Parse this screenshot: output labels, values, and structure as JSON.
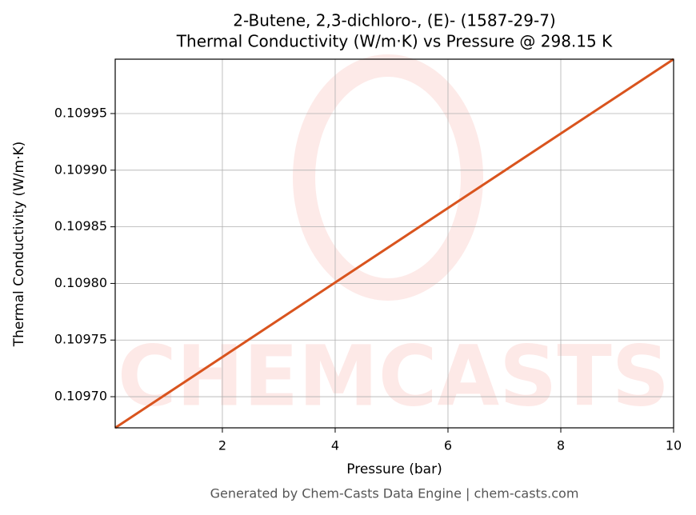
{
  "chart_data": {
    "type": "line",
    "title": "2-Butene, 2,3-dichloro-, (E)- (1587-29-7)",
    "subtitle": "Thermal Conductivity (W/m·K) vs Pressure @ 298.15 K",
    "x_label": "Pressure (bar)",
    "y_label": "Thermal Conductivity (W/m·K)",
    "footer": "Generated by Chem-Casts Data Engine | chem-casts.com",
    "watermark": "CHEMCASTS",
    "x": [
      0.1,
      2,
      4,
      6,
      8,
      10
    ],
    "series": [
      {
        "name": "Thermal Conductivity",
        "color": "#d9541e",
        "values": [
          0.1096725,
          0.109735,
          0.1098008,
          0.1098666,
          0.1099323,
          0.109998
        ]
      }
    ],
    "xlim": [
      0.1,
      10
    ],
    "xticks": [
      2,
      4,
      6,
      8,
      10
    ],
    "ylim": [
      0.1096725,
      0.109998
    ],
    "yticks": [
      {
        "value": 0.1097,
        "label": "0.10970"
      },
      0.10975,
      {
        "value": 0.1098,
        "label": "0.10980"
      },
      0.10985,
      {
        "value": 0.1099,
        "label": "0.10990"
      },
      0.10995
    ],
    "grid": true
  }
}
